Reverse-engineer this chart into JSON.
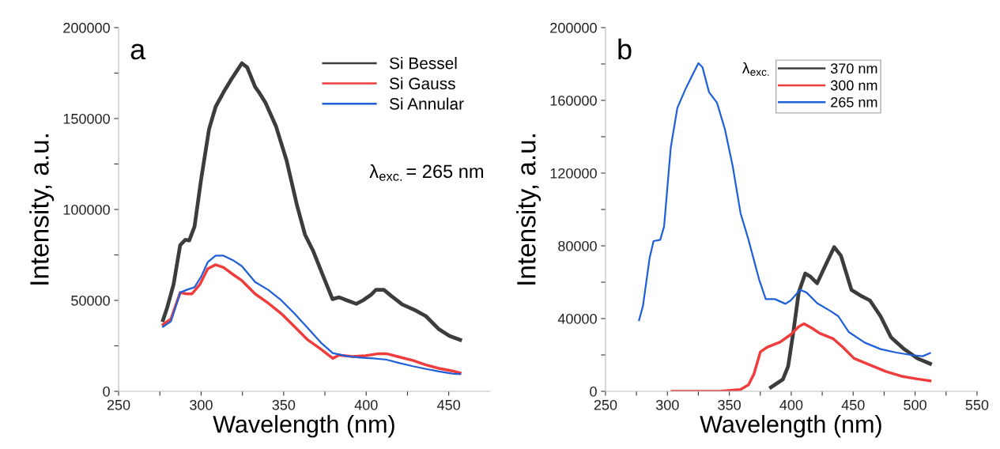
{
  "chart_data": [
    {
      "type": "line",
      "xlabel": "Wavelength (nm)",
      "ylabel": "Intensity, a.u.",
      "annotations": [
        "a",
        "λ$_{exc.}$= 265 nm"
      ],
      "legend": "top right",
      "grid": false,
      "xlim": [
        250,
        475
      ],
      "ylim": [
        0,
        200000
      ],
      "xticks": [
        250,
        {
          "value": 275,
          "label": null
        },
        300,
        {
          "value": 325,
          "label": null
        },
        350,
        {
          "value": 375,
          "label": null
        },
        400,
        {
          "value": 425,
          "label": null
        },
        450
      ],
      "yticks": [
        0,
        {
          "value": 25000,
          "label": null
        },
        50000,
        {
          "value": 75000,
          "label": null
        },
        100000,
        {
          "value": 125000,
          "label": null
        },
        150000,
        {
          "value": 175000,
          "label": null
        },
        200000
      ],
      "series": [
        {
          "name": "Si Bessel",
          "color": "#3c3c3c",
          "x": [
            276.9,
            279.3,
            283.3,
            287.3,
            290.4,
            292.8,
            296.0,
            300.0,
            304.8,
            308.8,
            313.6,
            318.4,
            321.5,
            324.7,
            327.9,
            332.7,
            335.0,
            339.0,
            345.4,
            351.8,
            358.1,
            362.9,
            367.7,
            374.1,
            379.6,
            383.6,
            388.4,
            394.0,
            398.0,
            402.7,
            405.9,
            410.7,
            415.5,
            421.8,
            429.8,
            436.2,
            444.1,
            450.5,
            456.9
          ],
          "values": [
            39100,
            45600,
            58700,
            80400,
            83300,
            83000,
            90600,
            116600,
            144200,
            156500,
            164500,
            171700,
            176000,
            180400,
            178200,
            167400,
            164500,
            158700,
            145600,
            126800,
            102200,
            86200,
            77500,
            63000,
            50700,
            51700,
            50000,
            48100,
            50000,
            52900,
            55800,
            55800,
            52200,
            47800,
            44500,
            41300,
            34100,
            30400,
            28300
          ]
        },
        {
          "name": "Si Gauss",
          "color": "#f03c3c",
          "x": [
            276.9,
            281.7,
            287.3,
            291.3,
            294.5,
            299.2,
            304.0,
            308.8,
            313.6,
            320.0,
            324.7,
            332.7,
            340.6,
            348.6,
            356.6,
            364.6,
            372.5,
            378.9,
            379.7,
            383.6,
            391.6,
            399.6,
            407.5,
            412.3,
            420.3,
            428.2,
            436.2,
            444.1,
            452.1,
            456.9
          ],
          "values": [
            36700,
            39800,
            54300,
            53600,
            53600,
            58700,
            67400,
            69600,
            68100,
            63800,
            60900,
            53600,
            48500,
            42700,
            35500,
            28300,
            23200,
            18800,
            18100,
            19900,
            19100,
            19600,
            20700,
            20700,
            18800,
            17000,
            14500,
            12600,
            11200,
            10100
          ]
        },
        {
          "name": "Si Annular",
          "color": "#1f5fd8",
          "x": [
            276.9,
            281.7,
            287.3,
            291.3,
            296.0,
            300.0,
            304.0,
            308.8,
            313.6,
            320.0,
            324.7,
            332.7,
            340.6,
            348.6,
            356.6,
            364.6,
            372.5,
            379.7,
            388.4,
            396.4,
            404.3,
            412.3,
            420.3,
            428.2,
            436.2,
            444.1,
            452.1,
            456.9
          ],
          "values": [
            35500,
            38400,
            54300,
            55800,
            57200,
            63000,
            71000,
            74600,
            74600,
            71700,
            68800,
            60100,
            55800,
            50000,
            42700,
            34800,
            26800,
            21000,
            19300,
            18500,
            18100,
            17400,
            15500,
            13800,
            12300,
            10900,
            9700,
            9400
          ]
        }
      ]
    },
    {
      "type": "line",
      "xlabel": "Wavelength (nm)",
      "ylabel": "Intensity, a.u.",
      "annotations": [
        "b"
      ],
      "legend": "top right",
      "legend_title": "λ$_{exc.}$",
      "grid": false,
      "xlim": [
        250,
        550
      ],
      "ylim": [
        0,
        200000
      ],
      "xticks": [
        250,
        {
          "value": 275,
          "label": null
        },
        300,
        {
          "value": 325,
          "label": null
        },
        350,
        {
          "value": 375,
          "label": null
        },
        400,
        {
          "value": 425,
          "label": null
        },
        450,
        {
          "value": 475,
          "label": null
        },
        500,
        {
          "value": 525,
          "label": null
        },
        550
      ],
      "yticks": [
        0,
        {
          "value": 20000,
          "label": null
        },
        40000,
        {
          "value": 60000,
          "label": null
        },
        80000,
        {
          "value": 100000,
          "label": null
        },
        120000,
        {
          "value": 140000,
          "label": null
        },
        160000,
        {
          "value": 180000,
          "label": null
        },
        200000
      ],
      "series": [
        {
          "name": "370 nm",
          "color": "#3c3c3c",
          "x": [
            383.6,
            393.2,
            397.5,
            401.7,
            406.0,
            411.3,
            415.6,
            420.9,
            427.3,
            434.7,
            440.1,
            448.6,
            457.1,
            463.5,
            472.1,
            480.6,
            491.2,
            501.9,
            512.1
          ],
          "values": [
            2200,
            6500,
            13800,
            32600,
            54300,
            64800,
            63000,
            59400,
            68800,
            79300,
            74600,
            55800,
            52200,
            50000,
            41300,
            29700,
            23200,
            18100,
            15200
          ]
        },
        {
          "name": "300 nm",
          "color": "#f03c3c",
          "x": [
            303.8,
            342.1,
            359.1,
            365.5,
            369.8,
            375.1,
            380.4,
            391.1,
            399.6,
            406.0,
            410.3,
            416.6,
            423.0,
            433.7,
            442.2,
            450.7,
            463.5,
            476.3,
            489.1,
            501.8,
            512.1
          ],
          "values": [
            0,
            0,
            1000,
            3600,
            9400,
            21700,
            24200,
            27100,
            31200,
            35500,
            37200,
            34800,
            31900,
            29000,
            23900,
            18100,
            14500,
            10900,
            8300,
            6800,
            5800
          ]
        },
        {
          "name": "265 nm",
          "color": "#1f5fd8",
          "x": [
            277.1,
            280.3,
            285.6,
            288.8,
            294.2,
            297.3,
            302.7,
            308.0,
            314.4,
            319.7,
            325.0,
            328.3,
            333.6,
            340.0,
            346.4,
            352.7,
            359.1,
            365.5,
            374.0,
            379.4,
            386.8,
            395.3,
            399.6,
            407.1,
            412.4,
            420.9,
            431.6,
            438.0,
            446.5,
            459.3,
            472.1,
            484.8,
            497.6,
            506.1,
            512.1
          ],
          "values": [
            39100,
            47100,
            73200,
            82600,
            83300,
            90600,
            134000,
            155800,
            165900,
            173200,
            180400,
            178200,
            164500,
            158700,
            144200,
            123900,
            97800,
            83300,
            61600,
            50700,
            50700,
            48100,
            50000,
            55800,
            54300,
            48500,
            44200,
            41300,
            32600,
            26800,
            23200,
            21300,
            19900,
            19300,
            21000
          ]
        }
      ]
    }
  ]
}
